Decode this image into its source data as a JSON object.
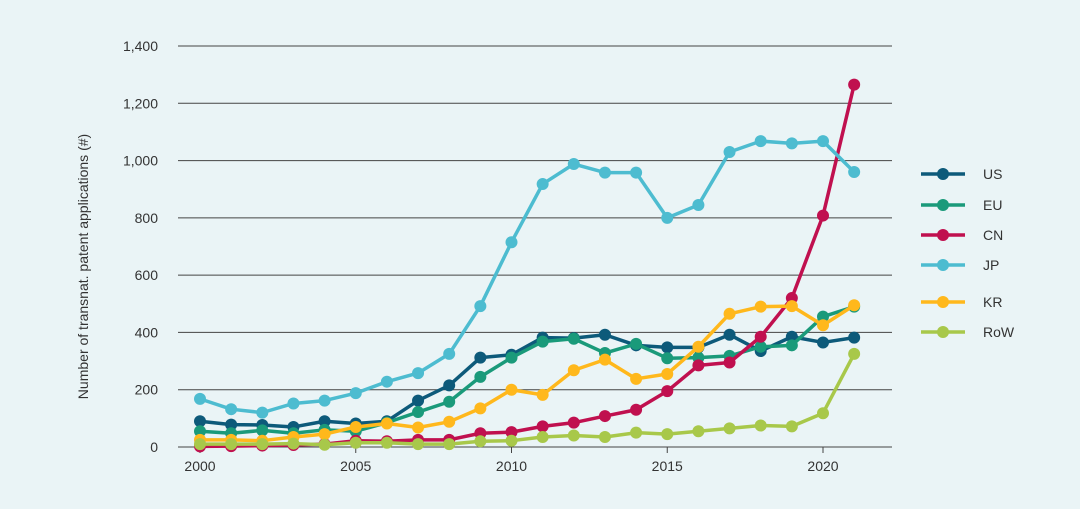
{
  "chart_data": {
    "type": "line",
    "title": "",
    "xlabel": "",
    "ylabel": "Number of transnat. patent applications (#)",
    "xlim": [
      2000,
      2021
    ],
    "ylim": [
      0,
      1400
    ],
    "x_ticks": [
      {
        "value": 2000,
        "label": "2000"
      },
      {
        "value": 2005,
        "label": "2005"
      },
      {
        "value": 2010,
        "label": "2010"
      },
      {
        "value": 2015,
        "label": "2015"
      },
      {
        "value": 2020,
        "label": "2020"
      }
    ],
    "y_ticks": [
      {
        "value": 0,
        "label": "0"
      },
      {
        "value": 200,
        "label": "200"
      },
      {
        "value": 400,
        "label": "400"
      },
      {
        "value": 600,
        "label": "600"
      },
      {
        "value": 800,
        "label": "800"
      },
      {
        "value": 1000,
        "label": "1,000"
      },
      {
        "value": 1200,
        "label": "1,200"
      },
      {
        "value": 1400,
        "label": "1,400"
      }
    ],
    "grid": "horizontal",
    "legend_position": "right",
    "x": [
      2000,
      2001,
      2002,
      2003,
      2004,
      2005,
      2006,
      2007,
      2008,
      2009,
      2010,
      2011,
      2012,
      2013,
      2014,
      2015,
      2016,
      2017,
      2018,
      2019,
      2020,
      2021
    ],
    "series": [
      {
        "name": "US",
        "color": "#0d5a7a",
        "values": [
          90,
          78,
          77,
          70,
          90,
          82,
          90,
          162,
          215,
          312,
          322,
          382,
          380,
          392,
          355,
          348,
          348,
          392,
          335,
          385,
          365,
          382
        ]
      },
      {
        "name": "EU",
        "color": "#1a9a7a",
        "values": [
          55,
          48,
          58,
          48,
          60,
          55,
          85,
          122,
          158,
          245,
          312,
          368,
          378,
          328,
          360,
          310,
          312,
          318,
          350,
          355,
          455,
          490
        ]
      },
      {
        "name": "CN",
        "color": "#c0104f",
        "values": [
          2,
          3,
          5,
          7,
          10,
          22,
          20,
          25,
          25,
          48,
          52,
          72,
          85,
          108,
          130,
          195,
          285,
          295,
          385,
          520,
          808,
          1265
        ]
      },
      {
        "name": "JP",
        "color": "#4dbcd0",
        "values": [
          168,
          132,
          120,
          152,
          162,
          188,
          228,
          258,
          325,
          492,
          715,
          918,
          988,
          958,
          958,
          800,
          845,
          1030,
          1068,
          1060,
          1068,
          960
        ]
      },
      {
        "name": "KR",
        "color": "#ffb81c",
        "values": [
          25,
          25,
          22,
          35,
          45,
          70,
          82,
          68,
          88,
          135,
          200,
          182,
          268,
          305,
          238,
          255,
          350,
          465,
          490,
          492,
          425,
          495
        ]
      },
      {
        "name": "RoW",
        "color": "#a8c84a",
        "values": [
          10,
          10,
          10,
          12,
          8,
          15,
          15,
          10,
          10,
          20,
          22,
          35,
          40,
          35,
          50,
          45,
          55,
          65,
          75,
          72,
          118,
          325
        ]
      }
    ]
  }
}
